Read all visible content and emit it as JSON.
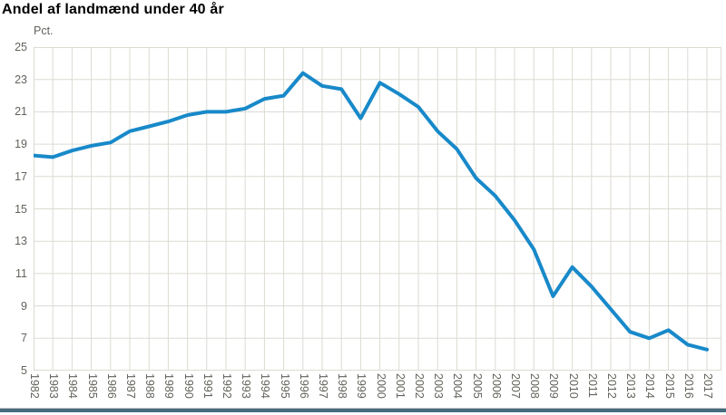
{
  "title": "Andel af landmænd under 40 år",
  "y_axis_unit": "Pct.",
  "colors": {
    "line": "#1889c9",
    "grid": "#dcdad2",
    "tick_label": "#63625b",
    "title": "#000000",
    "bottom_border": "#456b7e"
  },
  "chart_data": {
    "type": "line",
    "title": "Andel af landmænd under 40 år",
    "xlabel": "",
    "ylabel": "Pct.",
    "x": [
      1982,
      1983,
      1984,
      1985,
      1986,
      1987,
      1988,
      1989,
      1990,
      1991,
      1992,
      1993,
      1994,
      1995,
      1996,
      1997,
      1998,
      1999,
      2000,
      2001,
      2002,
      2003,
      2004,
      2005,
      2006,
      2007,
      2008,
      2009,
      2010,
      2011,
      2012,
      2013,
      2014,
      2015,
      2016,
      2017
    ],
    "series": [
      {
        "name": "Andel af landmænd under 40 år",
        "values": [
          18.3,
          18.2,
          18.6,
          18.9,
          19.1,
          19.8,
          20.1,
          20.4,
          20.8,
          21.0,
          21.0,
          21.2,
          21.8,
          22.0,
          23.4,
          22.6,
          22.4,
          20.6,
          22.8,
          22.1,
          21.3,
          19.8,
          18.7,
          16.9,
          15.8,
          14.3,
          12.5,
          9.6,
          11.4,
          10.2,
          8.8,
          7.4,
          7.0,
          7.5,
          6.6,
          6.3
        ]
      }
    ],
    "ylim": [
      5,
      25
    ],
    "y_tick_step": 2,
    "x_tick_step": 1,
    "grid": true,
    "legend": false
  }
}
